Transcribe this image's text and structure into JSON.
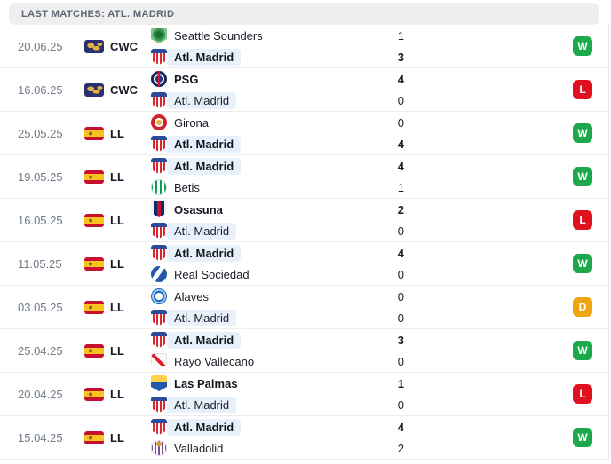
{
  "header": {
    "title": "LAST MATCHES: ATL. MADRID"
  },
  "colors": {
    "win_badge": "#1da94b",
    "loss_badge": "#e0101f",
    "draw_badge": "#f0a40d",
    "highlight_pill": "#e8f1fb",
    "header_bg": "#efefef",
    "cwc_icon_bg": "#2b3170",
    "spain_flag_red": "#c8102e",
    "spain_flag_yellow": "#f7c31e"
  },
  "matches": [
    {
      "date": "20.06.25",
      "competition": {
        "code": "CWC",
        "flag": "cwc",
        "icon": "club-world-cup-icon"
      },
      "home": {
        "name": "Seattle Sounders",
        "score": "1",
        "winner": false,
        "highlight": false,
        "logo": "seattle"
      },
      "away": {
        "name": "Atl. Madrid",
        "score": "3",
        "winner": true,
        "highlight": true,
        "logo": "atm"
      },
      "result": "W"
    },
    {
      "date": "16.06.25",
      "competition": {
        "code": "CWC",
        "flag": "cwc",
        "icon": "club-world-cup-icon"
      },
      "home": {
        "name": "PSG",
        "score": "4",
        "winner": true,
        "highlight": false,
        "logo": "psg"
      },
      "away": {
        "name": "Atl. Madrid",
        "score": "0",
        "winner": false,
        "highlight": true,
        "logo": "atm"
      },
      "result": "L"
    },
    {
      "date": "25.05.25",
      "competition": {
        "code": "LL",
        "flag": "esp",
        "icon": "spain-flag-icon"
      },
      "home": {
        "name": "Girona",
        "score": "0",
        "winner": false,
        "highlight": false,
        "logo": "girona"
      },
      "away": {
        "name": "Atl. Madrid",
        "score": "4",
        "winner": true,
        "highlight": true,
        "logo": "atm"
      },
      "result": "W"
    },
    {
      "date": "19.05.25",
      "competition": {
        "code": "LL",
        "flag": "esp",
        "icon": "spain-flag-icon"
      },
      "home": {
        "name": "Atl. Madrid",
        "score": "4",
        "winner": true,
        "highlight": true,
        "logo": "atm"
      },
      "away": {
        "name": "Betis",
        "score": "1",
        "winner": false,
        "highlight": false,
        "logo": "betis"
      },
      "result": "W"
    },
    {
      "date": "16.05.25",
      "competition": {
        "code": "LL",
        "flag": "esp",
        "icon": "spain-flag-icon"
      },
      "home": {
        "name": "Osasuna",
        "score": "2",
        "winner": true,
        "highlight": false,
        "logo": "osasuna"
      },
      "away": {
        "name": "Atl. Madrid",
        "score": "0",
        "winner": false,
        "highlight": true,
        "logo": "atm"
      },
      "result": "L"
    },
    {
      "date": "11.05.25",
      "competition": {
        "code": "LL",
        "flag": "esp",
        "icon": "spain-flag-icon"
      },
      "home": {
        "name": "Atl. Madrid",
        "score": "4",
        "winner": true,
        "highlight": true,
        "logo": "atm"
      },
      "away": {
        "name": "Real Sociedad",
        "score": "0",
        "winner": false,
        "highlight": false,
        "logo": "realsociedad"
      },
      "result": "W"
    },
    {
      "date": "03.05.25",
      "competition": {
        "code": "LL",
        "flag": "esp",
        "icon": "spain-flag-icon"
      },
      "home": {
        "name": "Alaves",
        "score": "0",
        "winner": false,
        "highlight": false,
        "logo": "alaves"
      },
      "away": {
        "name": "Atl. Madrid",
        "score": "0",
        "winner": false,
        "highlight": true,
        "logo": "atm"
      },
      "result": "D"
    },
    {
      "date": "25.04.25",
      "competition": {
        "code": "LL",
        "flag": "esp",
        "icon": "spain-flag-icon"
      },
      "home": {
        "name": "Atl. Madrid",
        "score": "3",
        "winner": true,
        "highlight": true,
        "logo": "atm"
      },
      "away": {
        "name": "Rayo Vallecano",
        "score": "0",
        "winner": false,
        "highlight": false,
        "logo": "rayo"
      },
      "result": "W"
    },
    {
      "date": "20.04.25",
      "competition": {
        "code": "LL",
        "flag": "esp",
        "icon": "spain-flag-icon"
      },
      "home": {
        "name": "Las Palmas",
        "score": "1",
        "winner": true,
        "highlight": false,
        "logo": "laspalmas"
      },
      "away": {
        "name": "Atl. Madrid",
        "score": "0",
        "winner": false,
        "highlight": true,
        "logo": "atm"
      },
      "result": "L"
    },
    {
      "date": "15.04.25",
      "competition": {
        "code": "LL",
        "flag": "esp",
        "icon": "spain-flag-icon"
      },
      "home": {
        "name": "Atl. Madrid",
        "score": "4",
        "winner": true,
        "highlight": true,
        "logo": "atm"
      },
      "away": {
        "name": "Valladolid",
        "score": "2",
        "winner": false,
        "highlight": false,
        "logo": "valladolid"
      },
      "result": "W"
    }
  ]
}
